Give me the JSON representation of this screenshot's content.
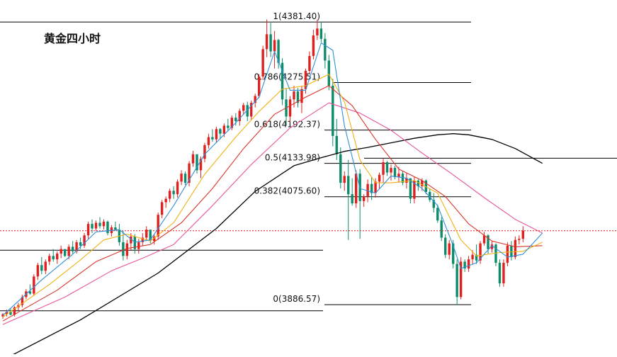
{
  "chart_data": {
    "type": "candlestick",
    "title": "黄金四小时",
    "ylim": [
      3800,
      4420
    ],
    "colors": {
      "up": "#e0201f",
      "down": "#0e8c6a",
      "ma_fast": "#2f8fd8",
      "ma_mid": "#f0b214",
      "ma_slow": "#d9342b",
      "ma_long": "#e6569a",
      "ma_trend": "#000000",
      "price_line": "#e0201f"
    },
    "fib_levels": [
      {
        "label": "1(4381.40)",
        "ratio": 1,
        "value": 4381.4
      },
      {
        "label": "0.786(4275.51)",
        "ratio": 0.786,
        "value": 4275.51
      },
      {
        "label": "0.618(4192.37)",
        "ratio": 0.618,
        "value": 4192.37
      },
      {
        "label": "0.5(4133.98)",
        "ratio": 0.5,
        "value": 4133.98
      },
      {
        "label": "0.382(4075.60)",
        "ratio": 0.382,
        "value": 4075.6
      },
      {
        "label": "0(3886.57)",
        "ratio": 0,
        "value": 3886.57
      }
    ],
    "horizontal_lines": [
      3982,
      3876,
      4143
    ],
    "current_price": 4016,
    "candles": [
      [
        3866,
        3872,
        3862,
        3870
      ],
      [
        3870,
        3878,
        3866,
        3874
      ],
      [
        3874,
        3880,
        3868,
        3869
      ],
      [
        3869,
        3884,
        3866,
        3882
      ],
      [
        3882,
        3890,
        3876,
        3886
      ],
      [
        3886,
        3904,
        3882,
        3900
      ],
      [
        3900,
        3914,
        3896,
        3910
      ],
      [
        3910,
        3922,
        3904,
        3906
      ],
      [
        3906,
        3940,
        3902,
        3936
      ],
      [
        3936,
        3960,
        3930,
        3956
      ],
      [
        3956,
        3970,
        3940,
        3946
      ],
      [
        3946,
        3966,
        3940,
        3962
      ],
      [
        3962,
        3976,
        3956,
        3972
      ],
      [
        3972,
        3984,
        3962,
        3966
      ],
      [
        3966,
        3980,
        3958,
        3976
      ],
      [
        3976,
        3990,
        3968,
        3984
      ],
      [
        3984,
        3982,
        3970,
        3972
      ],
      [
        3972,
        3992,
        3966,
        3988
      ],
      [
        3988,
        3998,
        3976,
        3980
      ],
      [
        3980,
        4000,
        3976,
        3996
      ],
      [
        3996,
        4004,
        3984,
        3990
      ],
      [
        3990,
        4012,
        3986,
        4008
      ],
      [
        4008,
        4032,
        4002,
        4028
      ],
      [
        4028,
        4036,
        4012,
        4020
      ],
      [
        4020,
        4034,
        4016,
        4030
      ],
      [
        4030,
        4040,
        4020,
        4024
      ],
      [
        4024,
        4036,
        4018,
        4032
      ],
      [
        4032,
        4034,
        4008,
        4012
      ],
      [
        4012,
        4026,
        4006,
        4022
      ],
      [
        4022,
        4032,
        4016,
        4018
      ],
      [
        4018,
        4028,
        3990,
        3996
      ],
      [
        3996,
        4016,
        3964,
        3972
      ],
      [
        3972,
        4000,
        3966,
        3994
      ],
      [
        3994,
        4012,
        3982,
        4006
      ],
      [
        4006,
        4010,
        3976,
        3984
      ],
      [
        3984,
        4002,
        3976,
        3996
      ],
      [
        3996,
        4012,
        3990,
        4004
      ],
      [
        4004,
        4024,
        3998,
        4018
      ],
      [
        4018,
        4016,
        3994,
        3998
      ],
      [
        3998,
        4010,
        3992,
        4006
      ],
      [
        4006,
        4048,
        4000,
        4044
      ],
      [
        4044,
        4070,
        4038,
        4066
      ],
      [
        4066,
        4076,
        4056,
        4072
      ],
      [
        4072,
        4090,
        4066,
        4086
      ],
      [
        4086,
        4094,
        4072,
        4080
      ],
      [
        4080,
        4106,
        4074,
        4102
      ],
      [
        4102,
        4122,
        4096,
        4116
      ],
      [
        4116,
        4120,
        4096,
        4100
      ],
      [
        4100,
        4138,
        4094,
        4134
      ],
      [
        4134,
        4156,
        4128,
        4150
      ],
      [
        4150,
        4148,
        4116,
        4122
      ],
      [
        4122,
        4146,
        4108,
        4142
      ],
      [
        4142,
        4170,
        4136,
        4166
      ],
      [
        4166,
        4186,
        4160,
        4180
      ],
      [
        4180,
        4194,
        4172,
        4176
      ],
      [
        4176,
        4198,
        4170,
        4194
      ],
      [
        4194,
        4196,
        4176,
        4186
      ],
      [
        4186,
        4204,
        4180,
        4200
      ],
      [
        4200,
        4212,
        4190,
        4196
      ],
      [
        4196,
        4218,
        4192,
        4214
      ],
      [
        4214,
        4222,
        4200,
        4208
      ],
      [
        4208,
        4230,
        4200,
        4226
      ],
      [
        4226,
        4240,
        4220,
        4236
      ],
      [
        4236,
        4242,
        4208,
        4216
      ],
      [
        4216,
        4244,
        4210,
        4240
      ],
      [
        4240,
        4256,
        4232,
        4252
      ],
      [
        4252,
        4290,
        4248,
        4286
      ],
      [
        4286,
        4340,
        4280,
        4334
      ],
      [
        4334,
        4386,
        4320,
        4360
      ],
      [
        4360,
        4380,
        4320,
        4330
      ],
      [
        4330,
        4366,
        4300,
        4350
      ],
      [
        4350,
        4352,
        4300,
        4310
      ],
      [
        4310,
        4318,
        4236,
        4246
      ],
      [
        4246,
        4266,
        4200,
        4216
      ],
      [
        4216,
        4252,
        4206,
        4246
      ],
      [
        4246,
        4270,
        4232,
        4260
      ],
      [
        4260,
        4266,
        4232,
        4240
      ],
      [
        4240,
        4270,
        4222,
        4264
      ],
      [
        4264,
        4300,
        4256,
        4296
      ],
      [
        4296,
        4330,
        4290,
        4322
      ],
      [
        4322,
        4368,
        4316,
        4358
      ],
      [
        4358,
        4386,
        4350,
        4370
      ],
      [
        4370,
        4382,
        4346,
        4352
      ],
      [
        4352,
        4362,
        4300,
        4314
      ],
      [
        4314,
        4324,
        4262,
        4270
      ],
      [
        4270,
        4282,
        4164,
        4182
      ],
      [
        4182,
        4212,
        4140,
        4150
      ],
      [
        4150,
        4162,
        4090,
        4100
      ],
      [
        4100,
        4120,
        4086,
        4112
      ],
      [
        4112,
        4140,
        4000,
        4080
      ],
      [
        4080,
        4108,
        4060,
        4064
      ],
      [
        4064,
        4122,
        4056,
        4116
      ],
      [
        4116,
        4124,
        4002,
        4068
      ],
      [
        4068,
        4080,
        4058,
        4076
      ],
      [
        4076,
        4106,
        4066,
        4098
      ],
      [
        4098,
        4110,
        4070,
        4082
      ],
      [
        4082,
        4108,
        4074,
        4102
      ],
      [
        4102,
        4118,
        4090,
        4114
      ],
      [
        4114,
        4142,
        4100,
        4136
      ],
      [
        4136,
        4138,
        4112,
        4118
      ],
      [
        4118,
        4132,
        4104,
        4126
      ],
      [
        4126,
        4130,
        4106,
        4110
      ],
      [
        4110,
        4128,
        4100,
        4116
      ],
      [
        4116,
        4120,
        4096,
        4100
      ],
      [
        4100,
        4118,
        4090,
        4108
      ],
      [
        4108,
        4108,
        4064,
        4072
      ],
      [
        4072,
        4110,
        4064,
        4104
      ],
      [
        4104,
        4106,
        4086,
        4094
      ],
      [
        4094,
        4108,
        4086,
        4104
      ],
      [
        4104,
        4106,
        4080,
        4084
      ],
      [
        4084,
        4090,
        4066,
        4070
      ],
      [
        4070,
        4082,
        4048,
        4056
      ],
      [
        4056,
        4062,
        4030,
        4034
      ],
      [
        4034,
        4040,
        3998,
        4004
      ],
      [
        4004,
        4010,
        3968,
        3974
      ],
      [
        3974,
        4000,
        3966,
        3994
      ],
      [
        3994,
        4000,
        3950,
        3958
      ],
      [
        3958,
        3966,
        3886,
        3900
      ],
      [
        3900,
        3970,
        3896,
        3962
      ],
      [
        3962,
        3966,
        3944,
        3950
      ],
      [
        3950,
        3972,
        3944,
        3966
      ],
      [
        3966,
        3982,
        3958,
        3974
      ],
      [
        3974,
        3992,
        3958,
        3964
      ],
      [
        3964,
        3998,
        3958,
        3994
      ],
      [
        3994,
        4014,
        3990,
        4008
      ],
      [
        4008,
        4010,
        3976,
        3984
      ],
      [
        3984,
        3998,
        3978,
        3992
      ],
      [
        3992,
        3994,
        3954,
        3960
      ],
      [
        3960,
        3966,
        3918,
        3924
      ],
      [
        3924,
        3966,
        3918,
        3960
      ],
      [
        3960,
        3996,
        3954,
        3990
      ],
      [
        3990,
        3998,
        3964,
        3970
      ],
      [
        3970,
        4006,
        3966,
        4000
      ],
      [
        4000,
        4008,
        3992,
        4002
      ],
      [
        4002,
        4024,
        3996,
        4016
      ]
    ],
    "ma_fast": [
      [
        0,
        3868
      ],
      [
        10,
        3930
      ],
      [
        18,
        3975
      ],
      [
        24,
        4014
      ],
      [
        30,
        4018
      ],
      [
        34,
        3996
      ],
      [
        38,
        4000
      ],
      [
        44,
        4060
      ],
      [
        52,
        4150
      ],
      [
        60,
        4205
      ],
      [
        66,
        4250
      ],
      [
        70,
        4330
      ],
      [
        74,
        4262
      ],
      [
        78,
        4262
      ],
      [
        82,
        4345
      ],
      [
        85,
        4332
      ],
      [
        88,
        4200
      ],
      [
        92,
        4090
      ],
      [
        96,
        4082
      ],
      [
        100,
        4112
      ],
      [
        104,
        4108
      ],
      [
        108,
        4090
      ],
      [
        112,
        4060
      ],
      [
        116,
        3990
      ],
      [
        118,
        3950
      ],
      [
        122,
        3960
      ],
      [
        126,
        3990
      ],
      [
        130,
        3970
      ],
      [
        134,
        3975
      ],
      [
        139,
        4012
      ]
    ],
    "ma_mid": [
      [
        0,
        3865
      ],
      [
        12,
        3922
      ],
      [
        20,
        3965
      ],
      [
        26,
        4000
      ],
      [
        32,
        4010
      ],
      [
        38,
        3998
      ],
      [
        44,
        4030
      ],
      [
        52,
        4115
      ],
      [
        60,
        4180
      ],
      [
        66,
        4225
      ],
      [
        72,
        4264
      ],
      [
        78,
        4270
      ],
      [
        84,
        4290
      ],
      [
        88,
        4242
      ],
      [
        92,
        4140
      ],
      [
        96,
        4100
      ],
      [
        100,
        4100
      ],
      [
        106,
        4104
      ],
      [
        112,
        4082
      ],
      [
        118,
        4000
      ],
      [
        122,
        3972
      ],
      [
        128,
        3978
      ],
      [
        134,
        3980
      ],
      [
        139,
        3996
      ]
    ],
    "ma_slow": [
      [
        0,
        3858
      ],
      [
        14,
        3912
      ],
      [
        24,
        3962
      ],
      [
        32,
        3985
      ],
      [
        38,
        3992
      ],
      [
        46,
        4030
      ],
      [
        54,
        4090
      ],
      [
        62,
        4160
      ],
      [
        70,
        4220
      ],
      [
        78,
        4250
      ],
      [
        84,
        4270
      ],
      [
        90,
        4235
      ],
      [
        96,
        4176
      ],
      [
        102,
        4124
      ],
      [
        108,
        4104
      ],
      [
        114,
        4076
      ],
      [
        120,
        4028
      ],
      [
        126,
        3998
      ],
      [
        132,
        3988
      ],
      [
        139,
        3990
      ]
    ],
    "ma_long": [
      [
        0,
        3852
      ],
      [
        16,
        3900
      ],
      [
        28,
        3946
      ],
      [
        36,
        3968
      ],
      [
        44,
        3992
      ],
      [
        54,
        4060
      ],
      [
        64,
        4132
      ],
      [
        74,
        4196
      ],
      [
        84,
        4240
      ],
      [
        92,
        4222
      ],
      [
        100,
        4192
      ],
      [
        108,
        4152
      ],
      [
        116,
        4114
      ],
      [
        124,
        4074
      ],
      [
        132,
        4036
      ],
      [
        139,
        4012
      ]
    ],
    "ma_trend": [
      [
        0,
        3790
      ],
      [
        20,
        3860
      ],
      [
        40,
        3942
      ],
      [
        55,
        4020
      ],
      [
        65,
        4085
      ],
      [
        75,
        4130
      ],
      [
        82,
        4144
      ],
      [
        88,
        4155
      ],
      [
        94,
        4162
      ],
      [
        100,
        4170
      ],
      [
        106,
        4178
      ],
      [
        112,
        4184
      ],
      [
        116,
        4186
      ],
      [
        120,
        4184
      ],
      [
        126,
        4176
      ],
      [
        132,
        4160
      ],
      [
        139,
        4134
      ]
    ]
  }
}
